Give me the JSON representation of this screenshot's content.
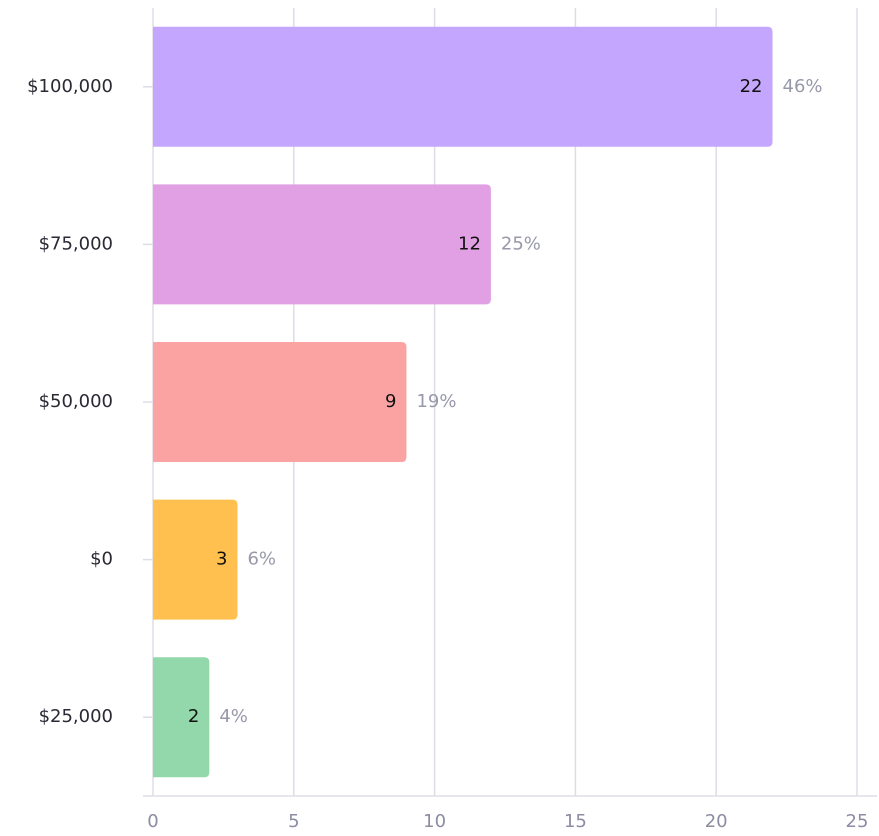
{
  "chart_data": {
    "type": "bar",
    "orientation": "horizontal",
    "categories": [
      "$100,000",
      "$75,000",
      "$50,000",
      "$0",
      "$25,000"
    ],
    "values": [
      22,
      12,
      9,
      3,
      2
    ],
    "percent_labels": [
      "46%",
      "25%",
      "19%",
      "6%",
      "4%"
    ],
    "colors": [
      "#c5a6ff",
      "#e2a0e4",
      "#fba3a3",
      "#ffc04f",
      "#92d8ab"
    ],
    "xlim": [
      0,
      25
    ],
    "xticks": [
      0,
      5,
      10,
      15,
      20,
      25
    ],
    "grid": true
  }
}
